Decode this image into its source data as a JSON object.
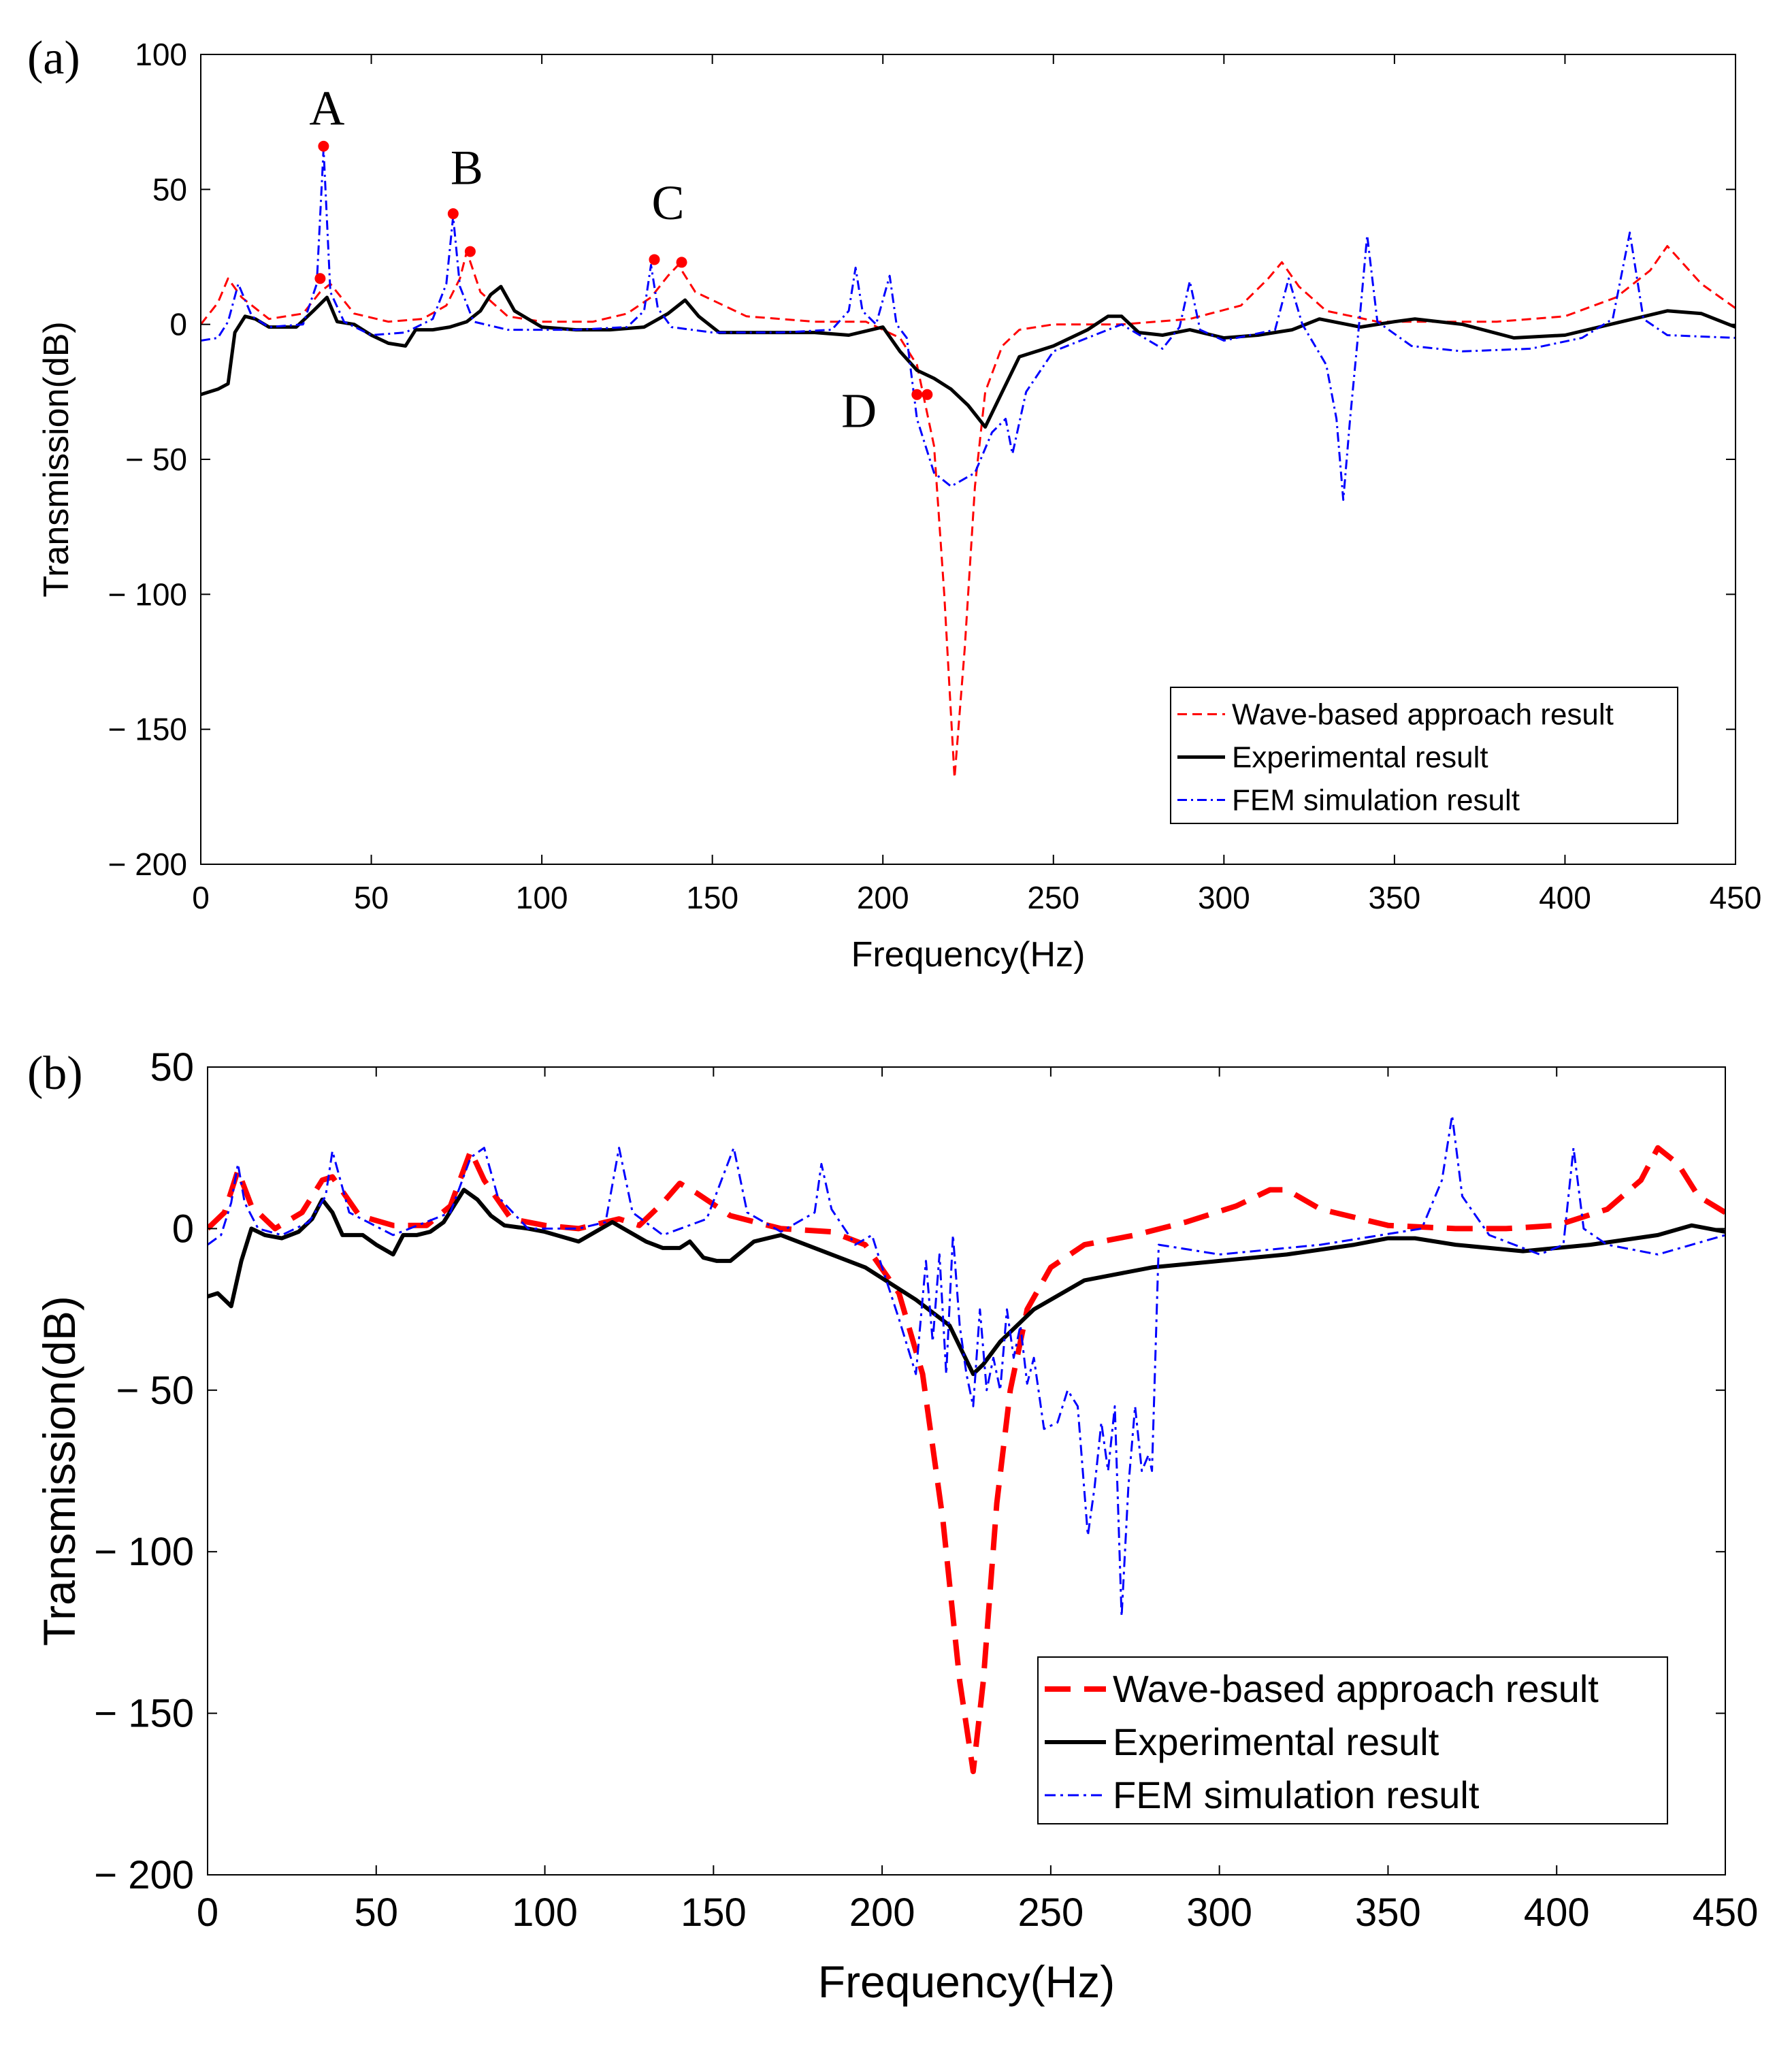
{
  "chart_data": [
    {
      "type": "line",
      "panel_label": "(a)",
      "xlabel": "Frequency(Hz)",
      "ylabel": "Transmission(dB)",
      "xlim": [
        0,
        450
      ],
      "ylim": [
        -200,
        100
      ],
      "xticks": [
        0,
        50,
        100,
        150,
        200,
        250,
        300,
        350,
        400,
        450
      ],
      "yticks": [
        100,
        50,
        0,
        -50,
        -100,
        -150,
        -200
      ],
      "xtick_labels": [
        "0",
        "50",
        "100",
        "150",
        "200",
        "250",
        "300",
        "350",
        "400",
        "450"
      ],
      "ytick_labels": [
        "100",
        "50",
        "0",
        "− 50",
        "− 100",
        "− 150",
        "− 200"
      ],
      "grid": false,
      "legend_position": "bottom-right",
      "series": [
        {
          "name": "Wave-based approach result",
          "color": "#ff0000",
          "style": "dashed",
          "x": [
            0,
            5,
            8,
            12,
            20,
            30,
            35,
            38,
            45,
            55,
            65,
            72,
            76,
            78,
            82,
            90,
            100,
            115,
            125,
            132,
            137,
            140,
            145,
            160,
            180,
            195,
            205,
            210,
            215,
            218,
            221,
            224,
            227,
            230,
            235,
            240,
            250,
            270,
            290,
            305,
            313,
            317,
            322,
            330,
            345,
            360,
            380,
            400,
            415,
            425,
            430,
            440,
            450
          ],
          "y": [
            0,
            8,
            17,
            10,
            2,
            4,
            12,
            15,
            4,
            1,
            2,
            7,
            17,
            27,
            12,
            3,
            1,
            1,
            4,
            10,
            18,
            22,
            12,
            3,
            1,
            1,
            -5,
            -15,
            -45,
            -100,
            -168,
            -120,
            -60,
            -25,
            -8,
            -2,
            0,
            0,
            2,
            7,
            17,
            23,
            14,
            5,
            1,
            1,
            1,
            3,
            10,
            20,
            29,
            15,
            6
          ]
        },
        {
          "name": "Experimental result",
          "color": "#000000",
          "style": "solid",
          "x": [
            0,
            5,
            8,
            10,
            13,
            16,
            20,
            28,
            33,
            37,
            40,
            45,
            50,
            55,
            60,
            63,
            68,
            73,
            78,
            82,
            85,
            88,
            92,
            100,
            110,
            120,
            130,
            137,
            142,
            146,
            152,
            160,
            170,
            180,
            190,
            200,
            205,
            210,
            215,
            220,
            225,
            230,
            235,
            240,
            250,
            260,
            266,
            270,
            275,
            282,
            290,
            300,
            310,
            320,
            328,
            340,
            350,
            356,
            370,
            385,
            400,
            410,
            420,
            430,
            440,
            450
          ],
          "y": [
            -26,
            -24,
            -22,
            -3,
            3,
            2,
            -1,
            -1,
            5,
            10,
            1,
            0,
            -4,
            -7,
            -8,
            -2,
            -2,
            -1,
            1,
            5,
            11,
            14,
            5,
            -1,
            -2,
            -2,
            -1,
            4,
            9,
            3,
            -3,
            -3,
            -3,
            -3,
            -4,
            -1,
            -10,
            -17,
            -20,
            -24,
            -30,
            -38,
            -25,
            -12,
            -8,
            -2,
            3,
            3,
            -3,
            -4,
            -2,
            -5,
            -4,
            -2,
            2,
            -1,
            1,
            2,
            0,
            -5,
            -4,
            -1,
            2,
            5,
            4,
            -1
          ]
        },
        {
          "name": "FEM simulation result",
          "color": "#0000ff",
          "style": "dashdot",
          "x": [
            0,
            5,
            8,
            11,
            15,
            20,
            30,
            34,
            36,
            38,
            42,
            50,
            60,
            68,
            72,
            74,
            76,
            80,
            90,
            110,
            125,
            130,
            132,
            134,
            138,
            150,
            170,
            185,
            190,
            192,
            194,
            198,
            202,
            204,
            207,
            210,
            215,
            220,
            227,
            232,
            236,
            238,
            242,
            250,
            260,
            270,
            278,
            282,
            287,
            290,
            293,
            300,
            315,
            319,
            323,
            330,
            333,
            335,
            337,
            340,
            342,
            345,
            355,
            370,
            390,
            405,
            414,
            419,
            423,
            430,
            450
          ],
          "y": [
            -6,
            -5,
            1,
            15,
            3,
            -1,
            0,
            15,
            65,
            12,
            1,
            -4,
            -3,
            2,
            15,
            40,
            14,
            1,
            -2,
            -2,
            -1,
            5,
            22,
            6,
            -1,
            -3,
            -3,
            -2,
            5,
            21,
            5,
            0,
            18,
            0,
            -5,
            -35,
            -55,
            -60,
            -55,
            -40,
            -35,
            -48,
            -25,
            -10,
            -5,
            0,
            -6,
            -9,
            -1,
            16,
            -2,
            -6,
            -2,
            17,
            0,
            -15,
            -35,
            -65,
            -35,
            5,
            33,
            1,
            -8,
            -10,
            -9,
            -5,
            2,
            34,
            2,
            -4,
            -5
          ]
        }
      ],
      "markers": [
        {
          "x": 36,
          "y": 66
        },
        {
          "x": 35,
          "y": 17
        },
        {
          "x": 74,
          "y": 41
        },
        {
          "x": 79,
          "y": 27
        },
        {
          "x": 133,
          "y": 24
        },
        {
          "x": 141,
          "y": 23
        },
        {
          "x": 210,
          "y": -26
        },
        {
          "x": 213,
          "y": -26
        }
      ],
      "annotations": [
        {
          "text": "A",
          "x": 37,
          "y": 74
        },
        {
          "text": "B",
          "x": 78,
          "y": 52
        },
        {
          "text": "C",
          "x": 137,
          "y": 39
        },
        {
          "text": "D",
          "x": 193,
          "y": -38
        }
      ]
    },
    {
      "type": "line",
      "panel_label": "(b)",
      "xlabel": "Frequency(Hz)",
      "ylabel": "Transmission(dB)",
      "xlim": [
        0,
        450
      ],
      "ylim": [
        -200,
        50
      ],
      "xticks": [
        0,
        50,
        100,
        150,
        200,
        250,
        300,
        350,
        400,
        450
      ],
      "yticks": [
        50,
        0,
        -50,
        -100,
        -150,
        -200
      ],
      "xtick_labels": [
        "0",
        "50",
        "100",
        "150",
        "200",
        "250",
        "300",
        "350",
        "400",
        "450"
      ],
      "ytick_labels": [
        "50",
        "0",
        "− 50",
        "− 100",
        "− 150",
        "− 200"
      ],
      "grid": false,
      "legend_position": "bottom-right",
      "series": [
        {
          "name": "Wave-based approach result",
          "color": "#ff0000",
          "style": "dashed",
          "x": [
            0,
            5,
            9,
            13,
            20,
            28,
            34,
            37,
            45,
            55,
            65,
            72,
            78,
            82,
            90,
            100,
            110,
            118,
            122,
            128,
            135,
            140,
            145,
            155,
            170,
            185,
            195,
            205,
            212,
            218,
            223,
            227,
            230,
            234,
            238,
            243,
            250,
            260,
            275,
            290,
            305,
            315,
            320,
            330,
            350,
            370,
            385,
            400,
            415,
            425,
            430,
            436,
            442,
            450
          ],
          "y": [
            0,
            5,
            18,
            7,
            0,
            5,
            15,
            16,
            4,
            1,
            1,
            7,
            24,
            15,
            3,
            1,
            0,
            2,
            3,
            1,
            8,
            14,
            11,
            4,
            0,
            -1,
            -5,
            -20,
            -45,
            -90,
            -140,
            -168,
            -140,
            -85,
            -50,
            -25,
            -12,
            -5,
            -2,
            2,
            7,
            12,
            12,
            6,
            1,
            0,
            0,
            1,
            6,
            15,
            25,
            20,
            10,
            5
          ]
        },
        {
          "name": "Experimental result",
          "color": "#000000",
          "style": "solid",
          "x": [
            0,
            3,
            7,
            10,
            13,
            17,
            22,
            27,
            31,
            34,
            37,
            40,
            46,
            50,
            55,
            58,
            62,
            66,
            70,
            76,
            80,
            84,
            88,
            95,
            100,
            110,
            115,
            120,
            125,
            130,
            135,
            140,
            143,
            147,
            151,
            155,
            162,
            170,
            180,
            195,
            210,
            220,
            227,
            230,
            235,
            245,
            260,
            280,
            300,
            320,
            340,
            350,
            358,
            370,
            390,
            410,
            430,
            440,
            450
          ],
          "y": [
            -21,
            -20,
            -24,
            -10,
            0,
            -2,
            -3,
            -1,
            3,
            9,
            5,
            -2,
            -2,
            -5,
            -8,
            -2,
            -2,
            -1,
            2,
            12,
            9,
            4,
            1,
            0,
            -1,
            -4,
            -1,
            2,
            -1,
            -4,
            -6,
            -6,
            -4,
            -9,
            -10,
            -10,
            -4,
            -2,
            -6,
            -12,
            -22,
            -30,
            -45,
            -42,
            -35,
            -25,
            -16,
            -12,
            -10,
            -8,
            -5,
            -3,
            -3,
            -5,
            -7,
            -5,
            -2,
            1,
            -1
          ]
        },
        {
          "name": "FEM simulation result",
          "color": "#0000ff",
          "style": "dashdot",
          "x": [
            0,
            4,
            7,
            9,
            11,
            15,
            22,
            30,
            35,
            37,
            42,
            55,
            72,
            78,
            82,
            86,
            95,
            110,
            118,
            122,
            126,
            135,
            148,
            156,
            160,
            170,
            180,
            182,
            185,
            192,
            197,
            200,
            205,
            210,
            213,
            215,
            217,
            219,
            221,
            223,
            225,
            227,
            229,
            231,
            233,
            235,
            237,
            239,
            241,
            243,
            245,
            248,
            252,
            255,
            258,
            261,
            263,
            265,
            267,
            269,
            271,
            273,
            275,
            277,
            279,
            280,
            282,
            300,
            330,
            360,
            366,
            369,
            372,
            380,
            395,
            402,
            405,
            408,
            415,
            430,
            450
          ],
          "y": [
            -5,
            -2,
            8,
            20,
            8,
            0,
            -2,
            2,
            10,
            24,
            5,
            -2,
            5,
            22,
            25,
            10,
            0,
            0,
            2,
            25,
            5,
            -2,
            3,
            25,
            5,
            -1,
            5,
            20,
            6,
            -5,
            -2,
            -12,
            -28,
            -45,
            -10,
            -35,
            -8,
            -45,
            -2,
            -30,
            -45,
            -55,
            -25,
            -50,
            -40,
            -50,
            -25,
            -40,
            -30,
            -48,
            -40,
            -62,
            -60,
            -50,
            -55,
            -95,
            -80,
            -60,
            -75,
            -55,
            -120,
            -80,
            -55,
            -75,
            -70,
            -75,
            -5,
            -8,
            -5,
            0,
            15,
            35,
            10,
            -2,
            -8,
            -5,
            25,
            0,
            -5,
            -8,
            -2
          ]
        }
      ]
    }
  ]
}
